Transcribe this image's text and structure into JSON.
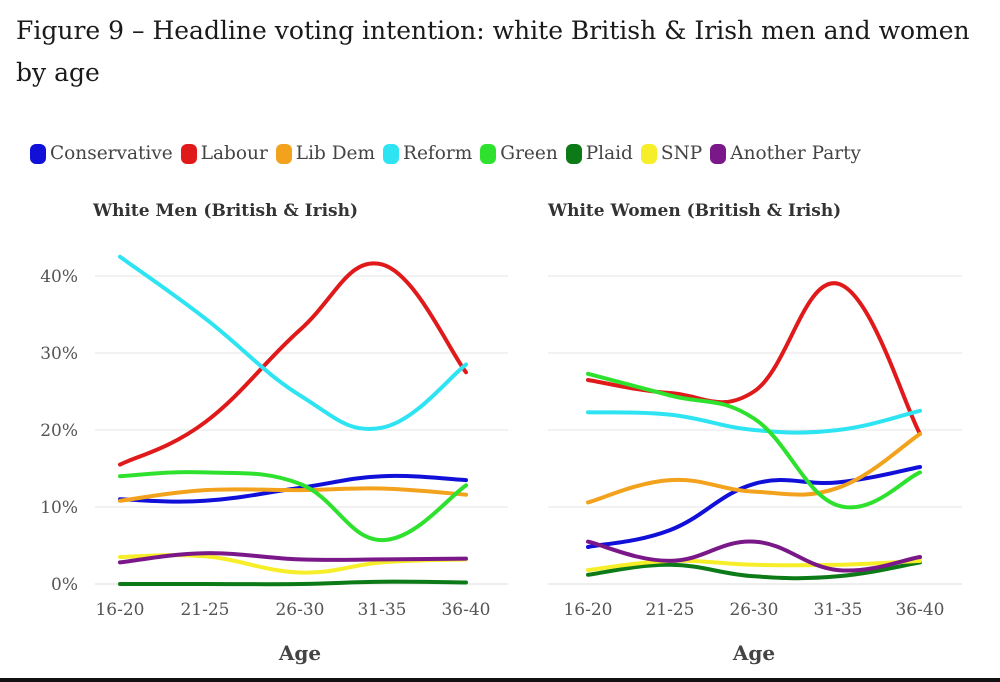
{
  "figure": {
    "title": "Figure 9 – Headline voting intention: white British & Irish men and women by age"
  },
  "legend": [
    {
      "label": "Conservative",
      "color": "#1010d8"
    },
    {
      "label": "Labour",
      "color": "#e01a1a"
    },
    {
      "label": "Lib Dem",
      "color": "#f2a21c"
    },
    {
      "label": "Reform",
      "color": "#2ee4f2"
    },
    {
      "label": "Green",
      "color": "#2ee12e"
    },
    {
      "label": "Plaid",
      "color": "#0c7a16"
    },
    {
      "label": "SNP",
      "color": "#f7ee2a"
    },
    {
      "label": "Another Party",
      "color": "#7a1889"
    }
  ],
  "chart_data": [
    {
      "type": "line",
      "title": "White Men (British & Irish)",
      "xlabel": "Age",
      "ylabel": "",
      "categories": [
        "16-20",
        "21-25",
        "26-30",
        "31-35",
        "36-40"
      ],
      "yticks": [
        "0%",
        "10%",
        "20%",
        "30%",
        "40%"
      ],
      "ylim": [
        0,
        45
      ],
      "grid": true,
      "series": [
        {
          "name": "Conservative",
          "values": [
            11,
            10.8,
            12.5,
            14,
            13.5
          ]
        },
        {
          "name": "Labour",
          "values": [
            15.5,
            21,
            33,
            41.5,
            27.5
          ]
        },
        {
          "name": "Lib Dem",
          "values": [
            10.8,
            12.2,
            12.2,
            12.4,
            11.6
          ]
        },
        {
          "name": "Reform",
          "values": [
            42.5,
            34.5,
            24.5,
            20.3,
            28.5
          ]
        },
        {
          "name": "Green",
          "values": [
            14,
            14.5,
            13,
            5.7,
            12.8
          ]
        },
        {
          "name": "Plaid",
          "values": [
            0,
            0,
            0,
            0.3,
            0.2
          ]
        },
        {
          "name": "SNP",
          "values": [
            3.5,
            3.6,
            1.5,
            2.8,
            3.2
          ]
        },
        {
          "name": "Another Party",
          "values": [
            2.8,
            4,
            3.2,
            3.2,
            3.3
          ]
        }
      ]
    },
    {
      "type": "line",
      "title": "White Women (British & Irish)",
      "xlabel": "Age",
      "ylabel": "",
      "categories": [
        "16-20",
        "21-25",
        "26-30",
        "31-35",
        "36-40"
      ],
      "yticks": [
        "0%",
        "10%",
        "20%",
        "30%",
        "40%"
      ],
      "ylim": [
        0,
        45
      ],
      "grid": true,
      "series": [
        {
          "name": "Conservative",
          "values": [
            4.8,
            7,
            13,
            13.2,
            15.2
          ]
        },
        {
          "name": "Labour",
          "values": [
            26.5,
            24.8,
            25,
            39,
            19.5
          ]
        },
        {
          "name": "Lib Dem",
          "values": [
            10.6,
            13.5,
            12,
            12.5,
            19.5
          ]
        },
        {
          "name": "Reform",
          "values": [
            22.3,
            22,
            20,
            20,
            22.5
          ]
        },
        {
          "name": "Green",
          "values": [
            27.3,
            24.5,
            21.5,
            10.2,
            14.5
          ]
        },
        {
          "name": "Plaid",
          "values": [
            1.2,
            2.5,
            1,
            1,
            2.8
          ]
        },
        {
          "name": "SNP",
          "values": [
            1.8,
            3,
            2.5,
            2.5,
            3
          ]
        },
        {
          "name": "Another Party",
          "values": [
            5.5,
            3,
            5.5,
            1.8,
            3.5
          ]
        }
      ]
    }
  ]
}
